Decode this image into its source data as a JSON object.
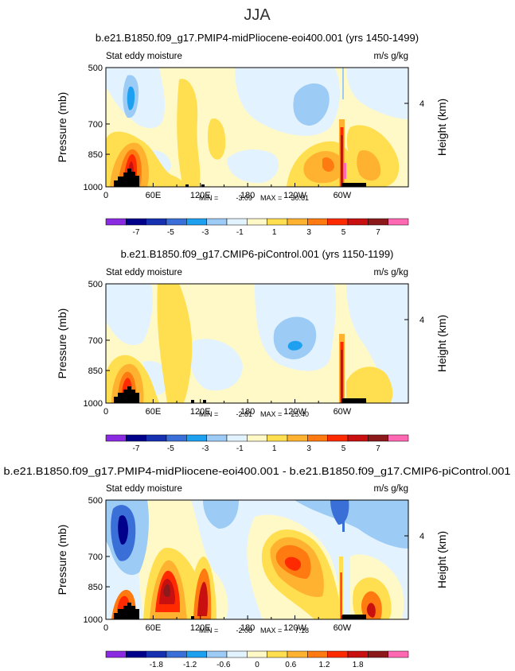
{
  "page_title": "JJA",
  "chart_data": [
    {
      "type": "heatmap",
      "title": "b.e21.B1850.f09_g17.PMIP4-midPliocene-eoi400.001 (yrs 1450-1499)",
      "left_string": "Stat eddy moisture",
      "right_string": "m/s g/kg",
      "xlabel": "",
      "ylabel": "Pressure (mb)",
      "ylabel_right": "Height (km)",
      "x_ticks": [
        "0",
        "60E",
        "120E",
        "180",
        "120W",
        "60W"
      ],
      "y_ticks": [
        "500",
        "700",
        "850",
        "1000"
      ],
      "y_right_ticks": [
        "4"
      ],
      "min_label": "MIN =",
      "min_value": "-3.09",
      "max_label": "MAX =",
      "max_value": "30.61",
      "colorbar_labels": [
        "-7",
        "-5",
        "-3",
        "-1",
        "1",
        "3",
        "5",
        "7"
      ],
      "grid": false
    },
    {
      "type": "heatmap",
      "title": "b.e21.B1850.f09_g17.CMIP6-piControl.001 (yrs 1150-1199)",
      "left_string": "Stat eddy moisture",
      "right_string": "m/s g/kg",
      "xlabel": "",
      "ylabel": "Pressure (mb)",
      "ylabel_right": "Height (km)",
      "x_ticks": [
        "0",
        "60E",
        "120E",
        "180",
        "120W",
        "60W"
      ],
      "y_ticks": [
        "500",
        "700",
        "850",
        "1000"
      ],
      "y_right_ticks": [
        "4"
      ],
      "min_label": "MIN =",
      "min_value": "-2.81",
      "max_label": "MAX =",
      "max_value": "25.40",
      "colorbar_labels": [
        "-7",
        "-5",
        "-3",
        "-1",
        "1",
        "3",
        "5",
        "7"
      ],
      "grid": false
    },
    {
      "type": "heatmap",
      "title": "b.e21.B1850.f09_g17.PMIP4-midPliocene-eoi400.001 - b.e21.B1850.f09_g17.CMIP6-piControl.001",
      "left_string": "Stat eddy moisture",
      "right_string": "m/s g/kg",
      "xlabel": "",
      "ylabel": "Pressure (mb)",
      "ylabel_right": "Height (km)",
      "x_ticks": [
        "0",
        "60E",
        "120E",
        "180",
        "120W",
        "60W"
      ],
      "y_ticks": [
        "500",
        "700",
        "850",
        "1000"
      ],
      "y_right_ticks": [
        "4"
      ],
      "min_label": "MIN =",
      "min_value": "-2.08",
      "max_label": "MAX =",
      "max_value": "7.18",
      "colorbar_labels": [
        "-1.8",
        "-1.2",
        "-0.6",
        "0",
        "0.6",
        "1.2",
        "1.8"
      ],
      "grid": false
    }
  ],
  "colors": {
    "colorbar": [
      "#8a2be2",
      "#00008b",
      "#1530b0",
      "#3a6fd8",
      "#1ea0f0",
      "#9ccbf5",
      "#e3f2ff",
      "#fff9c8",
      "#ffdf4f",
      "#ffb230",
      "#ff7a10",
      "#ff2a00",
      "#c81010",
      "#8c1a1a",
      "#ff69b4"
    ],
    "topography": "#000000"
  }
}
